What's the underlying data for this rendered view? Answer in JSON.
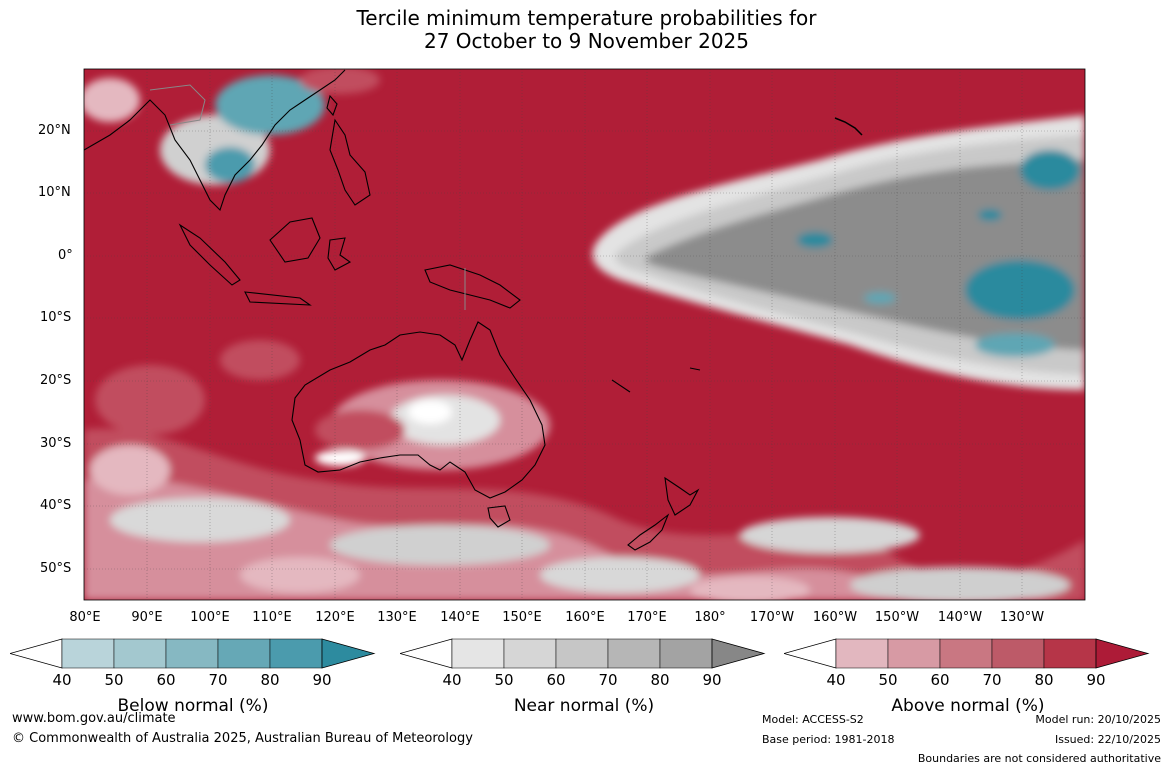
{
  "title_line1": "Tercile minimum temperature probabilities for",
  "title_line2": "27 October to 9 November 2025",
  "lat_labels": [
    "20°N",
    "10°N",
    "0°",
    "10°S",
    "20°S",
    "30°S",
    "40°S",
    "50°S"
  ],
  "lon_labels": [
    "80°E",
    "90°E",
    "100°E",
    "110°E",
    "120°E",
    "130°E",
    "140°E",
    "150°E",
    "160°E",
    "170°E",
    "180°",
    "170°W",
    "160°W",
    "150°W",
    "140°W",
    "130°W"
  ],
  "colorbars": [
    {
      "title": "Below normal (%)",
      "ticks": [
        "40",
        "50",
        "60",
        "70",
        "80",
        "90"
      ],
      "colors": [
        "#ffffff",
        "#b9d4da",
        "#a3c8cf",
        "#86b8c2",
        "#66a8b6",
        "#4b9bad",
        "#2d8b9f"
      ]
    },
    {
      "title": "Near normal (%)",
      "ticks": [
        "40",
        "50",
        "60",
        "70",
        "80",
        "90"
      ],
      "colors": [
        "#ffffff",
        "#e5e5e5",
        "#d6d6d6",
        "#c6c6c6",
        "#b6b6b6",
        "#a3a3a3",
        "#878787"
      ]
    },
    {
      "title": "Above normal (%)",
      "ticks": [
        "40",
        "50",
        "60",
        "70",
        "80",
        "90"
      ],
      "colors": [
        "#ffffff",
        "#e2b7bf",
        "#d79aa4",
        "#c97782",
        "#bd5a68",
        "#b63548",
        "#ad1b37"
      ]
    }
  ],
  "map_colors": {
    "above_dark": "#b01e37",
    "above_mid": "#c14d5e",
    "above_light": "#d68f9c",
    "above_pale": "#e4b8c0",
    "near_dark": "#888888",
    "near_mid": "#a6a6a6",
    "near_light": "#c9c9c9",
    "near_pale": "#e3e3e3",
    "below_dark": "#2a8a9e",
    "below_mid": "#5ea6b4",
    "below_light": "#a6c9d0"
  },
  "footer": {
    "website": "www.bom.gov.au/climate",
    "copyright": "© Commonwealth of Australia 2025, Australian Bureau of Meteorology",
    "model": "Model: ACCESS-S2",
    "base_period": "Base period: 1981-2018",
    "model_run": "Model run: 20/10/2025",
    "issued": "Issued: 22/10/2025",
    "disclaimer": "Boundaries are not considered authoritative"
  }
}
